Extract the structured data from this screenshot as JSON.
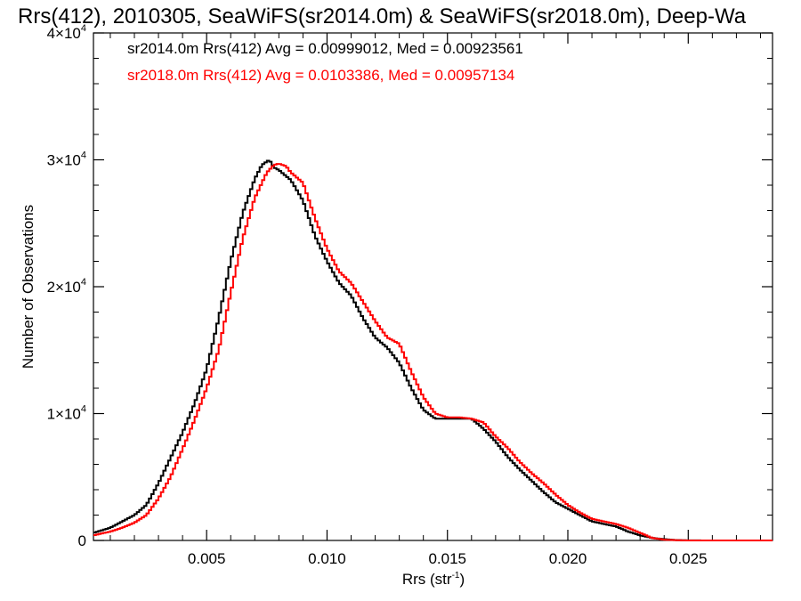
{
  "chart_data": {
    "type": "line",
    "title": "Rrs(412), 2010305, SeaWiFS(sr2014.0m) & SeaWiFS(sr2018.0m), Deep-Wa",
    "xlabel": "Rrs (str",
    "xlabel_sup": "-1",
    "xlabel_close": ")",
    "ylabel": "Number of Observations",
    "xlim": [
      0.0003,
      0.0285
    ],
    "ylim": [
      0,
      40000
    ],
    "x_ticks": [
      {
        "value": 0.005,
        "label": "0.005"
      },
      {
        "value": 0.01,
        "label": "0.010"
      },
      {
        "value": 0.015,
        "label": "0.015"
      },
      {
        "value": 0.02,
        "label": "0.020"
      },
      {
        "value": 0.025,
        "label": "0.025"
      }
    ],
    "y_ticks": [
      {
        "value": 0,
        "label": "0",
        "sup": ""
      },
      {
        "value": 10000,
        "label": "1×10",
        "sup": "4"
      },
      {
        "value": 20000,
        "label": "2×10",
        "sup": "4"
      },
      {
        "value": 30000,
        "label": "3×10",
        "sup": "4"
      },
      {
        "value": 40000,
        "label": "4×10",
        "sup": "4"
      }
    ],
    "legend_placement": "top-left",
    "annotations": [
      {
        "text": "sr2014.0m Rrs(412) Avg = 0.00999012, Med = 0.00923561",
        "color": "#000000"
      },
      {
        "text": "sr2018.0m Rrs(412) Avg = 0.0103386, Med = 0.00957134",
        "color": "#ff0000"
      }
    ],
    "series": [
      {
        "color": "#000000",
        "x": [
          0.0003,
          0.001,
          0.0015,
          0.002,
          0.0025,
          0.003,
          0.0035,
          0.004,
          0.0045,
          0.005,
          0.0055,
          0.006,
          0.0065,
          0.007,
          0.0073,
          0.0076,
          0.0078,
          0.008,
          0.0085,
          0.009,
          0.0095,
          0.01,
          0.0105,
          0.011,
          0.0115,
          0.012,
          0.0125,
          0.013,
          0.0135,
          0.014,
          0.0145,
          0.015,
          0.0155,
          0.016,
          0.0165,
          0.017,
          0.0175,
          0.018,
          0.0185,
          0.019,
          0.0195,
          0.02,
          0.0205,
          0.021,
          0.0215,
          0.022,
          0.0225,
          0.023,
          0.0235,
          0.024,
          0.0245,
          0.025,
          0.026,
          0.027,
          0.028,
          0.0285
        ],
        "y": [
          600,
          1000,
          1500,
          2000,
          2800,
          4500,
          6500,
          8500,
          10800,
          13500,
          17500,
          22000,
          25800,
          28500,
          29600,
          30000,
          29400,
          29200,
          28400,
          26800,
          24000,
          22000,
          20300,
          19300,
          17500,
          16000,
          15200,
          14000,
          12000,
          10300,
          9600,
          9600,
          9600,
          9600,
          8800,
          7800,
          6600,
          5600,
          4700,
          3800,
          3000,
          2500,
          2000,
          1500,
          1300,
          1100,
          700,
          400,
          200,
          100,
          30,
          10,
          0,
          0,
          0,
          0
        ]
      },
      {
        "color": "#ff0000",
        "x": [
          0.0003,
          0.001,
          0.0015,
          0.002,
          0.0025,
          0.003,
          0.0035,
          0.004,
          0.0045,
          0.005,
          0.0055,
          0.006,
          0.0065,
          0.007,
          0.0075,
          0.0078,
          0.008,
          0.0083,
          0.0085,
          0.009,
          0.0095,
          0.01,
          0.0105,
          0.011,
          0.0115,
          0.012,
          0.0125,
          0.013,
          0.0135,
          0.014,
          0.0145,
          0.015,
          0.0155,
          0.016,
          0.0165,
          0.017,
          0.0175,
          0.018,
          0.0185,
          0.019,
          0.0195,
          0.02,
          0.0205,
          0.021,
          0.0215,
          0.022,
          0.0225,
          0.023,
          0.0235,
          0.024,
          0.0245,
          0.025,
          0.026,
          0.027,
          0.028,
          0.0285
        ],
        "y": [
          400,
          700,
          1000,
          1400,
          2000,
          3300,
          5000,
          7200,
          9500,
          12000,
          15000,
          19500,
          23800,
          27000,
          29000,
          29600,
          29700,
          29500,
          29000,
          28200,
          25400,
          23000,
          21200,
          20300,
          18800,
          17300,
          16000,
          15500,
          13300,
          11300,
          10000,
          9700,
          9700,
          9600,
          9300,
          8200,
          7300,
          6200,
          5300,
          4500,
          3600,
          2800,
          2200,
          1700,
          1500,
          1300,
          1000,
          600,
          200,
          60,
          20,
          0,
          0,
          0,
          0,
          0
        ]
      }
    ]
  }
}
